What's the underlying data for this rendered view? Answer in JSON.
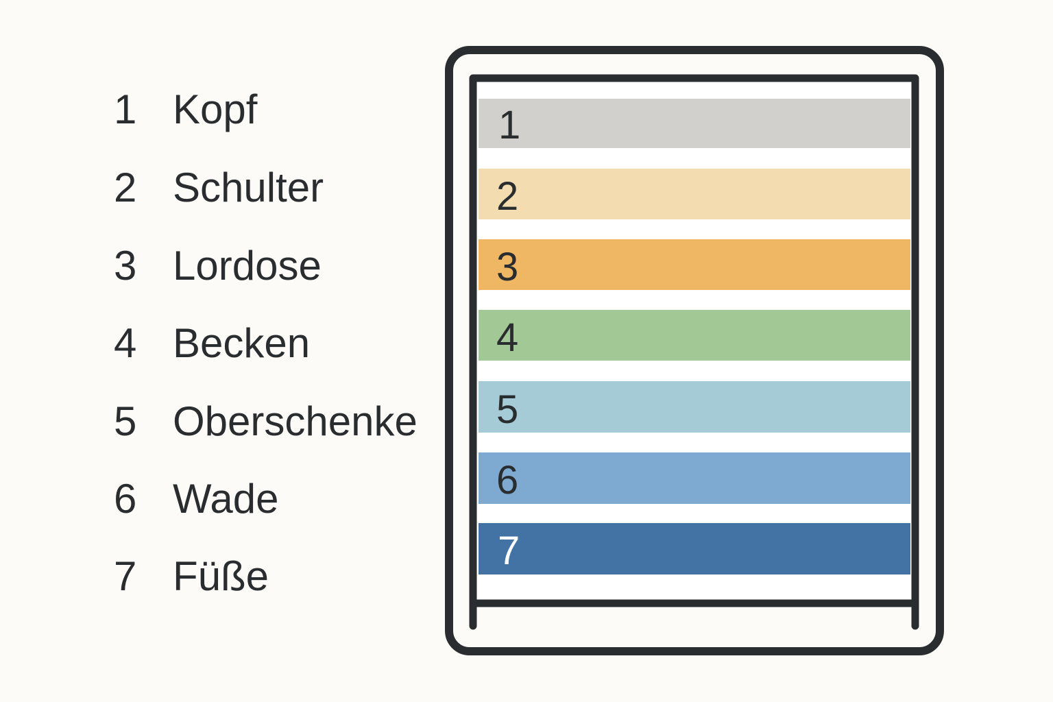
{
  "zones": [
    {
      "number": "1",
      "label": "Kopf",
      "color": "#d1d0cc",
      "num_color": "#2a2d2f"
    },
    {
      "number": "2",
      "label": "Schulter",
      "color": "#f2dcb0",
      "num_color": "#2a2d2f"
    },
    {
      "number": "3",
      "label": "Lordose",
      "color": "#efb763",
      "num_color": "#2a2d2f"
    },
    {
      "number": "4",
      "label": "Becken",
      "color": "#a2c995",
      "num_color": "#2a2d2f"
    },
    {
      "number": "5",
      "label": "Oberschenke",
      "color": "#a4cbd6",
      "num_color": "#2a2d2f"
    },
    {
      "number": "6",
      "label": "Wade",
      "color": "#7eaad2",
      "num_color": "#2a2d2f"
    },
    {
      "number": "7",
      "label": "Füße",
      "color": "#4372a5",
      "num_color": "#ffffff"
    }
  ],
  "frame_color": "#2a2d2f"
}
